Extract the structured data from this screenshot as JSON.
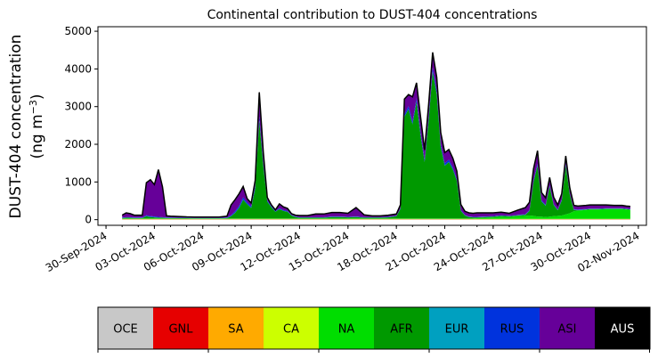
{
  "chart_data": {
    "type": "area",
    "stacked": true,
    "title": "Continental contribution to DUST-404 concentrations",
    "ylabel_line1": "DUST-404 concentration",
    "ylabel_line2": "(ng m",
    "ylabel_sup": "−3",
    "ylabel_close": ")",
    "ylim": [
      -150,
      5120
    ],
    "yticks": [
      0,
      1000,
      2000,
      3000,
      4000,
      5000
    ],
    "xlim_days": [
      "2024-09-29T12:00",
      "2024-11-02T12:00"
    ],
    "xtick_labels": [
      "30-Sep-2024",
      "03-Oct-2024",
      "06-Oct-2024",
      "09-Oct-2024",
      "12-Oct-2024",
      "15-Oct-2024",
      "18-Oct-2024",
      "21-Oct-2024",
      "24-Oct-2024",
      "27-Oct-2024",
      "30-Oct-2024",
      "02-Nov-2024"
    ],
    "xtick_dates": [
      "2024-09-30",
      "2024-10-03",
      "2024-10-06",
      "2024-10-09",
      "2024-10-12",
      "2024-10-15",
      "2024-10-18",
      "2024-10-21",
      "2024-10-24",
      "2024-10-27",
      "2024-10-30",
      "2024-11-02"
    ],
    "grid": false,
    "legend_position": "bottom colorbar",
    "legend_categories": [
      {
        "name": "OCE",
        "color": "#c8c8c8",
        "text_color": "#000000"
      },
      {
        "name": "GNL",
        "color": "#e60000",
        "text_color": "#000000"
      },
      {
        "name": "SA",
        "color": "#ffaa00",
        "text_color": "#000000"
      },
      {
        "name": "CA",
        "color": "#ccff00",
        "text_color": "#000000"
      },
      {
        "name": "NA",
        "color": "#00dd00",
        "text_color": "#000000"
      },
      {
        "name": "AFR",
        "color": "#009900",
        "text_color": "#000000"
      },
      {
        "name": "EUR",
        "color": "#00a0c0",
        "text_color": "#000000"
      },
      {
        "name": "RUS",
        "color": "#0033dd",
        "text_color": "#000000"
      },
      {
        "name": "ASI",
        "color": "#660099",
        "text_color": "#000000"
      },
      {
        "name": "AUS",
        "color": "#000000",
        "text_color": "#ffffff"
      }
    ],
    "x": [
      "2024-10-01T00:00",
      "2024-10-01T06:00",
      "2024-10-01T12:00",
      "2024-10-01T18:00",
      "2024-10-02T00:00",
      "2024-10-02T06:00",
      "2024-10-02T12:00",
      "2024-10-02T18:00",
      "2024-10-03T00:00",
      "2024-10-03T06:00",
      "2024-10-03T12:00",
      "2024-10-03T18:00",
      "2024-10-04T00:00",
      "2024-10-04T12:00",
      "2024-10-05T00:00",
      "2024-10-05T12:00",
      "2024-10-06T00:00",
      "2024-10-06T12:00",
      "2024-10-07T00:00",
      "2024-10-07T12:00",
      "2024-10-07T18:00",
      "2024-10-08T00:00",
      "2024-10-08T06:00",
      "2024-10-08T12:00",
      "2024-10-08T18:00",
      "2024-10-09T00:00",
      "2024-10-09T06:00",
      "2024-10-09T12:00",
      "2024-10-09T18:00",
      "2024-10-10T00:00",
      "2024-10-10T06:00",
      "2024-10-10T12:00",
      "2024-10-10T18:00",
      "2024-10-11T00:00",
      "2024-10-11T06:00",
      "2024-10-11T12:00",
      "2024-10-11T18:00",
      "2024-10-12T00:00",
      "2024-10-12T12:00",
      "2024-10-13T00:00",
      "2024-10-13T12:00",
      "2024-10-14T00:00",
      "2024-10-14T12:00",
      "2024-10-15T00:00",
      "2024-10-15T12:00",
      "2024-10-16T00:00",
      "2024-10-16T12:00",
      "2024-10-17T00:00",
      "2024-10-17T12:00",
      "2024-10-18T00:00",
      "2024-10-18T06:00",
      "2024-10-18T12:00",
      "2024-10-18T18:00",
      "2024-10-19T00:00",
      "2024-10-19T06:00",
      "2024-10-19T12:00",
      "2024-10-19T18:00",
      "2024-10-20T00:00",
      "2024-10-20T06:00",
      "2024-10-20T12:00",
      "2024-10-20T18:00",
      "2024-10-21T00:00",
      "2024-10-21T06:00",
      "2024-10-21T12:00",
      "2024-10-21T18:00",
      "2024-10-22T00:00",
      "2024-10-22T06:00",
      "2024-10-22T12:00",
      "2024-10-22T18:00",
      "2024-10-23T00:00",
      "2024-10-23T12:00",
      "2024-10-24T00:00",
      "2024-10-24T12:00",
      "2024-10-25T00:00",
      "2024-10-25T12:00",
      "2024-10-26T00:00",
      "2024-10-26T06:00",
      "2024-10-26T12:00",
      "2024-10-26T18:00",
      "2024-10-27T00:00",
      "2024-10-27T06:00",
      "2024-10-27T12:00",
      "2024-10-27T18:00",
      "2024-10-28T00:00",
      "2024-10-28T06:00",
      "2024-10-28T12:00",
      "2024-10-28T18:00",
      "2024-10-29T00:00",
      "2024-10-29T06:00",
      "2024-10-29T12:00",
      "2024-10-29T18:00",
      "2024-10-30T00:00",
      "2024-10-30T12:00",
      "2024-10-31T00:00",
      "2024-10-31T12:00",
      "2024-11-01T00:00",
      "2024-11-01T06:00",
      "2024-11-01T12:00"
    ],
    "series": [
      {
        "name": "OCE",
        "values": [
          5,
          5,
          5,
          5,
          5,
          5,
          5,
          5,
          5,
          5,
          5,
          5,
          5,
          5,
          5,
          5,
          5,
          5,
          5,
          5,
          5,
          5,
          5,
          5,
          5,
          5,
          5,
          5,
          5,
          5,
          5,
          5,
          5,
          5,
          5,
          5,
          5,
          5,
          5,
          5,
          5,
          5,
          5,
          5,
          5,
          5,
          5,
          5,
          5,
          5,
          5,
          5,
          5,
          5,
          5,
          5,
          5,
          5,
          5,
          5,
          5,
          5,
          5,
          5,
          5,
          5,
          5,
          5,
          5,
          5,
          5,
          5,
          5,
          5,
          5,
          5,
          5,
          5,
          5,
          5,
          5,
          5,
          5,
          5,
          5,
          5,
          5,
          5,
          5,
          5,
          5,
          5,
          5,
          5,
          5,
          5,
          5,
          5
        ]
      },
      {
        "name": "GNL",
        "values": [
          5,
          5,
          5,
          5,
          5,
          5,
          5,
          5,
          5,
          5,
          5,
          5,
          5,
          5,
          5,
          5,
          5,
          5,
          5,
          5,
          5,
          5,
          5,
          5,
          5,
          5,
          5,
          5,
          5,
          5,
          5,
          5,
          5,
          5,
          5,
          5,
          5,
          5,
          5,
          5,
          5,
          5,
          5,
          5,
          5,
          5,
          5,
          5,
          5,
          5,
          5,
          5,
          5,
          5,
          5,
          5,
          5,
          5,
          5,
          5,
          5,
          5,
          5,
          5,
          5,
          5,
          5,
          5,
          5,
          5,
          5,
          5,
          5,
          5,
          5,
          5,
          5,
          5,
          5,
          5,
          5,
          5,
          5,
          5,
          5,
          5,
          5,
          5,
          5,
          5,
          5,
          5,
          5,
          5,
          5,
          5,
          5,
          5
        ]
      },
      {
        "name": "SA",
        "values": [
          5,
          5,
          5,
          5,
          5,
          5,
          5,
          5,
          5,
          5,
          5,
          5,
          5,
          5,
          5,
          5,
          5,
          5,
          5,
          5,
          5,
          5,
          5,
          5,
          5,
          5,
          5,
          5,
          5,
          5,
          5,
          5,
          5,
          5,
          5,
          5,
          5,
          5,
          5,
          5,
          5,
          5,
          5,
          5,
          5,
          5,
          5,
          5,
          5,
          5,
          5,
          5,
          5,
          5,
          5,
          5,
          5,
          5,
          5,
          5,
          5,
          5,
          5,
          5,
          5,
          5,
          5,
          5,
          5,
          5,
          5,
          5,
          5,
          5,
          5,
          5,
          5,
          5,
          5,
          5,
          5,
          5,
          5,
          5,
          5,
          5,
          5,
          5,
          5,
          5,
          5,
          5,
          5,
          5,
          5,
          5,
          5,
          5
        ]
      },
      {
        "name": "CA",
        "values": [
          5,
          5,
          5,
          5,
          5,
          5,
          5,
          5,
          5,
          5,
          5,
          5,
          5,
          5,
          5,
          5,
          5,
          5,
          5,
          5,
          5,
          5,
          5,
          5,
          5,
          5,
          5,
          5,
          5,
          5,
          5,
          5,
          5,
          5,
          5,
          5,
          5,
          5,
          5,
          5,
          5,
          5,
          5,
          5,
          5,
          5,
          5,
          5,
          5,
          5,
          5,
          5,
          5,
          5,
          5,
          5,
          5,
          5,
          5,
          5,
          5,
          5,
          5,
          5,
          5,
          5,
          5,
          5,
          5,
          5,
          5,
          5,
          5,
          5,
          5,
          5,
          5,
          5,
          5,
          5,
          5,
          5,
          5,
          5,
          5,
          5,
          5,
          5,
          5,
          5,
          5,
          5,
          5,
          5,
          5,
          5,
          5,
          5
        ]
      },
      {
        "name": "NA",
        "values": [
          10,
          10,
          10,
          10,
          10,
          10,
          10,
          10,
          10,
          10,
          10,
          10,
          10,
          10,
          10,
          10,
          10,
          10,
          10,
          10,
          10,
          10,
          10,
          10,
          10,
          10,
          10,
          10,
          10,
          10,
          10,
          10,
          10,
          10,
          10,
          10,
          10,
          10,
          10,
          10,
          10,
          10,
          10,
          10,
          10,
          10,
          10,
          10,
          10,
          10,
          10,
          10,
          10,
          10,
          10,
          10,
          10,
          10,
          10,
          10,
          10,
          10,
          10,
          10,
          10,
          10,
          10,
          10,
          10,
          20,
          30,
          40,
          60,
          50,
          70,
          80,
          90,
          80,
          60,
          60,
          50,
          60,
          70,
          80,
          90,
          120,
          150,
          200,
          220,
          230,
          240,
          250,
          250,
          260,
          260,
          260,
          250,
          240
        ]
      },
      {
        "name": "AFR",
        "values": [
          10,
          20,
          20,
          10,
          10,
          10,
          60,
          40,
          30,
          20,
          20,
          10,
          10,
          10,
          10,
          5,
          5,
          5,
          5,
          10,
          60,
          150,
          280,
          500,
          380,
          280,
          800,
          2600,
          1400,
          450,
          300,
          180,
          250,
          200,
          180,
          80,
          40,
          20,
          20,
          20,
          20,
          40,
          40,
          30,
          40,
          20,
          20,
          20,
          30,
          60,
          250,
          2700,
          2900,
          2500,
          3100,
          2200,
          1500,
          2600,
          3900,
          3300,
          1900,
          1400,
          1500,
          1300,
          1000,
          200,
          80,
          40,
          30,
          20,
          20,
          20,
          20,
          20,
          20,
          30,
          120,
          900,
          1350,
          400,
          300,
          800,
          300,
          150,
          400,
          1300,
          500,
          40,
          10,
          10,
          10,
          10,
          10,
          10,
          10,
          10,
          10,
          10
        ]
      },
      {
        "name": "EUR",
        "values": [
          5,
          5,
          5,
          5,
          5,
          5,
          5,
          5,
          5,
          5,
          5,
          5,
          5,
          5,
          5,
          5,
          5,
          5,
          5,
          5,
          5,
          5,
          5,
          5,
          5,
          5,
          5,
          5,
          5,
          5,
          5,
          5,
          5,
          5,
          5,
          5,
          5,
          5,
          5,
          5,
          5,
          5,
          5,
          5,
          5,
          5,
          5,
          5,
          5,
          5,
          5,
          5,
          5,
          5,
          5,
          5,
          5,
          5,
          5,
          5,
          5,
          5,
          5,
          5,
          5,
          5,
          5,
          5,
          5,
          5,
          5,
          5,
          5,
          5,
          5,
          5,
          5,
          5,
          5,
          5,
          5,
          5,
          5,
          5,
          5,
          5,
          5,
          5,
          5,
          5,
          5,
          5,
          5,
          5,
          5,
          5,
          5,
          5
        ]
      },
      {
        "name": "RUS",
        "values": [
          10,
          10,
          10,
          10,
          10,
          10,
          20,
          20,
          20,
          20,
          10,
          10,
          10,
          5,
          5,
          5,
          5,
          5,
          5,
          10,
          20,
          40,
          50,
          60,
          40,
          40,
          60,
          100,
          60,
          30,
          20,
          20,
          20,
          20,
          20,
          10,
          10,
          10,
          10,
          10,
          10,
          10,
          10,
          10,
          10,
          10,
          10,
          10,
          10,
          10,
          20,
          60,
          80,
          70,
          90,
          80,
          60,
          80,
          100,
          90,
          70,
          60,
          60,
          50,
          40,
          20,
          10,
          10,
          10,
          10,
          10,
          10,
          10,
          10,
          10,
          10,
          20,
          40,
          50,
          30,
          20,
          30,
          20,
          10,
          20,
          40,
          20,
          10,
          10,
          10,
          10,
          10,
          10,
          10,
          10,
          10,
          10,
          10
        ]
      },
      {
        "name": "ASI",
        "values": [
          60,
          110,
          90,
          60,
          60,
          60,
          860,
          960,
          840,
          1250,
          800,
          40,
          30,
          30,
          20,
          20,
          20,
          20,
          20,
          30,
          270,
          300,
          320,
          280,
          100,
          80,
          140,
          640,
          300,
          70,
          30,
          20,
          110,
          80,
          60,
          30,
          30,
          40,
          40,
          80,
          80,
          100,
          100,
          90,
          230,
          60,
          30,
          30,
          40,
          40,
          80,
          400,
          300,
          650,
          400,
          400,
          250,
          340,
          400,
          350,
          300,
          280,
          260,
          240,
          210,
          140,
          90,
          90,
          90,
          100,
          90,
          80,
          80,
          60,
          120,
          170,
          200,
          300,
          340,
          200,
          180,
          200,
          180,
          120,
          150,
          200,
          150,
          100,
          90,
          90,
          90,
          90,
          90,
          80,
          70,
          70,
          60,
          60
        ]
      },
      {
        "name": "AUS",
        "values": [
          5,
          5,
          5,
          5,
          5,
          5,
          5,
          5,
          5,
          5,
          5,
          5,
          5,
          5,
          5,
          5,
          5,
          5,
          5,
          5,
          5,
          5,
          5,
          5,
          5,
          5,
          5,
          5,
          5,
          5,
          5,
          5,
          5,
          5,
          5,
          5,
          5,
          5,
          5,
          5,
          5,
          5,
          5,
          5,
          5,
          5,
          5,
          5,
          5,
          5,
          5,
          5,
          5,
          5,
          5,
          5,
          5,
          5,
          5,
          5,
          5,
          5,
          5,
          5,
          5,
          5,
          5,
          5,
          5,
          5,
          5,
          5,
          5,
          5,
          5,
          5,
          5,
          5,
          5,
          5,
          5,
          5,
          5,
          5,
          5,
          5,
          5,
          5,
          5,
          5,
          5,
          5,
          5,
          5,
          5,
          5,
          5,
          5
        ]
      }
    ]
  }
}
